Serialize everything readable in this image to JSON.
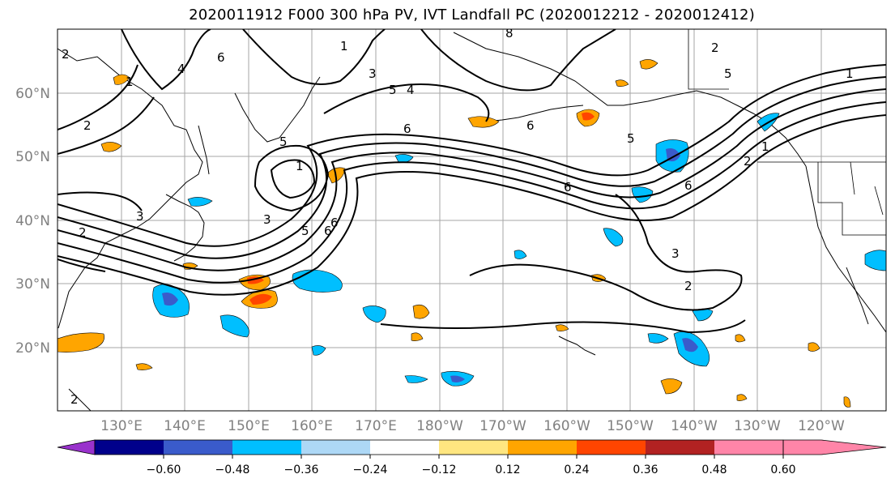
{
  "title": "2020011912 F000 300 hPa PV, IVT Landfall PC (2020012212 - 2020012412)",
  "lat_labels": [
    "60°N",
    "50°N",
    "40°N",
    "30°N",
    "20°N"
  ],
  "lon_labels": [
    "130°E",
    "140°E",
    "150°E",
    "160°E",
    "170°E",
    "180°W",
    "170°W",
    "160°W",
    "150°W",
    "140°W",
    "130°W",
    "120°W"
  ],
  "colorbar": {
    "colors": [
      "#9932CC",
      "#00008B",
      "#3A5BCB",
      "#00BFFF",
      "#ADD8F6",
      "#FFFFFF",
      "#FFE680",
      "#FFA500",
      "#FF4500",
      "#B22222",
      "#FF85A8"
    ],
    "ticks": [
      "−0.60",
      "−0.48",
      "−0.36",
      "−0.24",
      "−0.12",
      "0.12",
      "0.24",
      "0.36",
      "0.48",
      "0.60"
    ]
  },
  "contour_labels": [
    "2",
    "1",
    "4",
    "6",
    "3",
    "5",
    "4",
    "6",
    "6",
    "6",
    "5",
    "6",
    "6",
    "5",
    "1",
    "3",
    "6",
    "2",
    "1",
    "2",
    "3",
    "5",
    "2",
    "1",
    "2",
    "1",
    "5",
    "3",
    "2",
    "2",
    "8"
  ],
  "colors": {
    "contour": "#000000",
    "grid": "#a0a0a0",
    "axis_label": "#808080"
  }
}
